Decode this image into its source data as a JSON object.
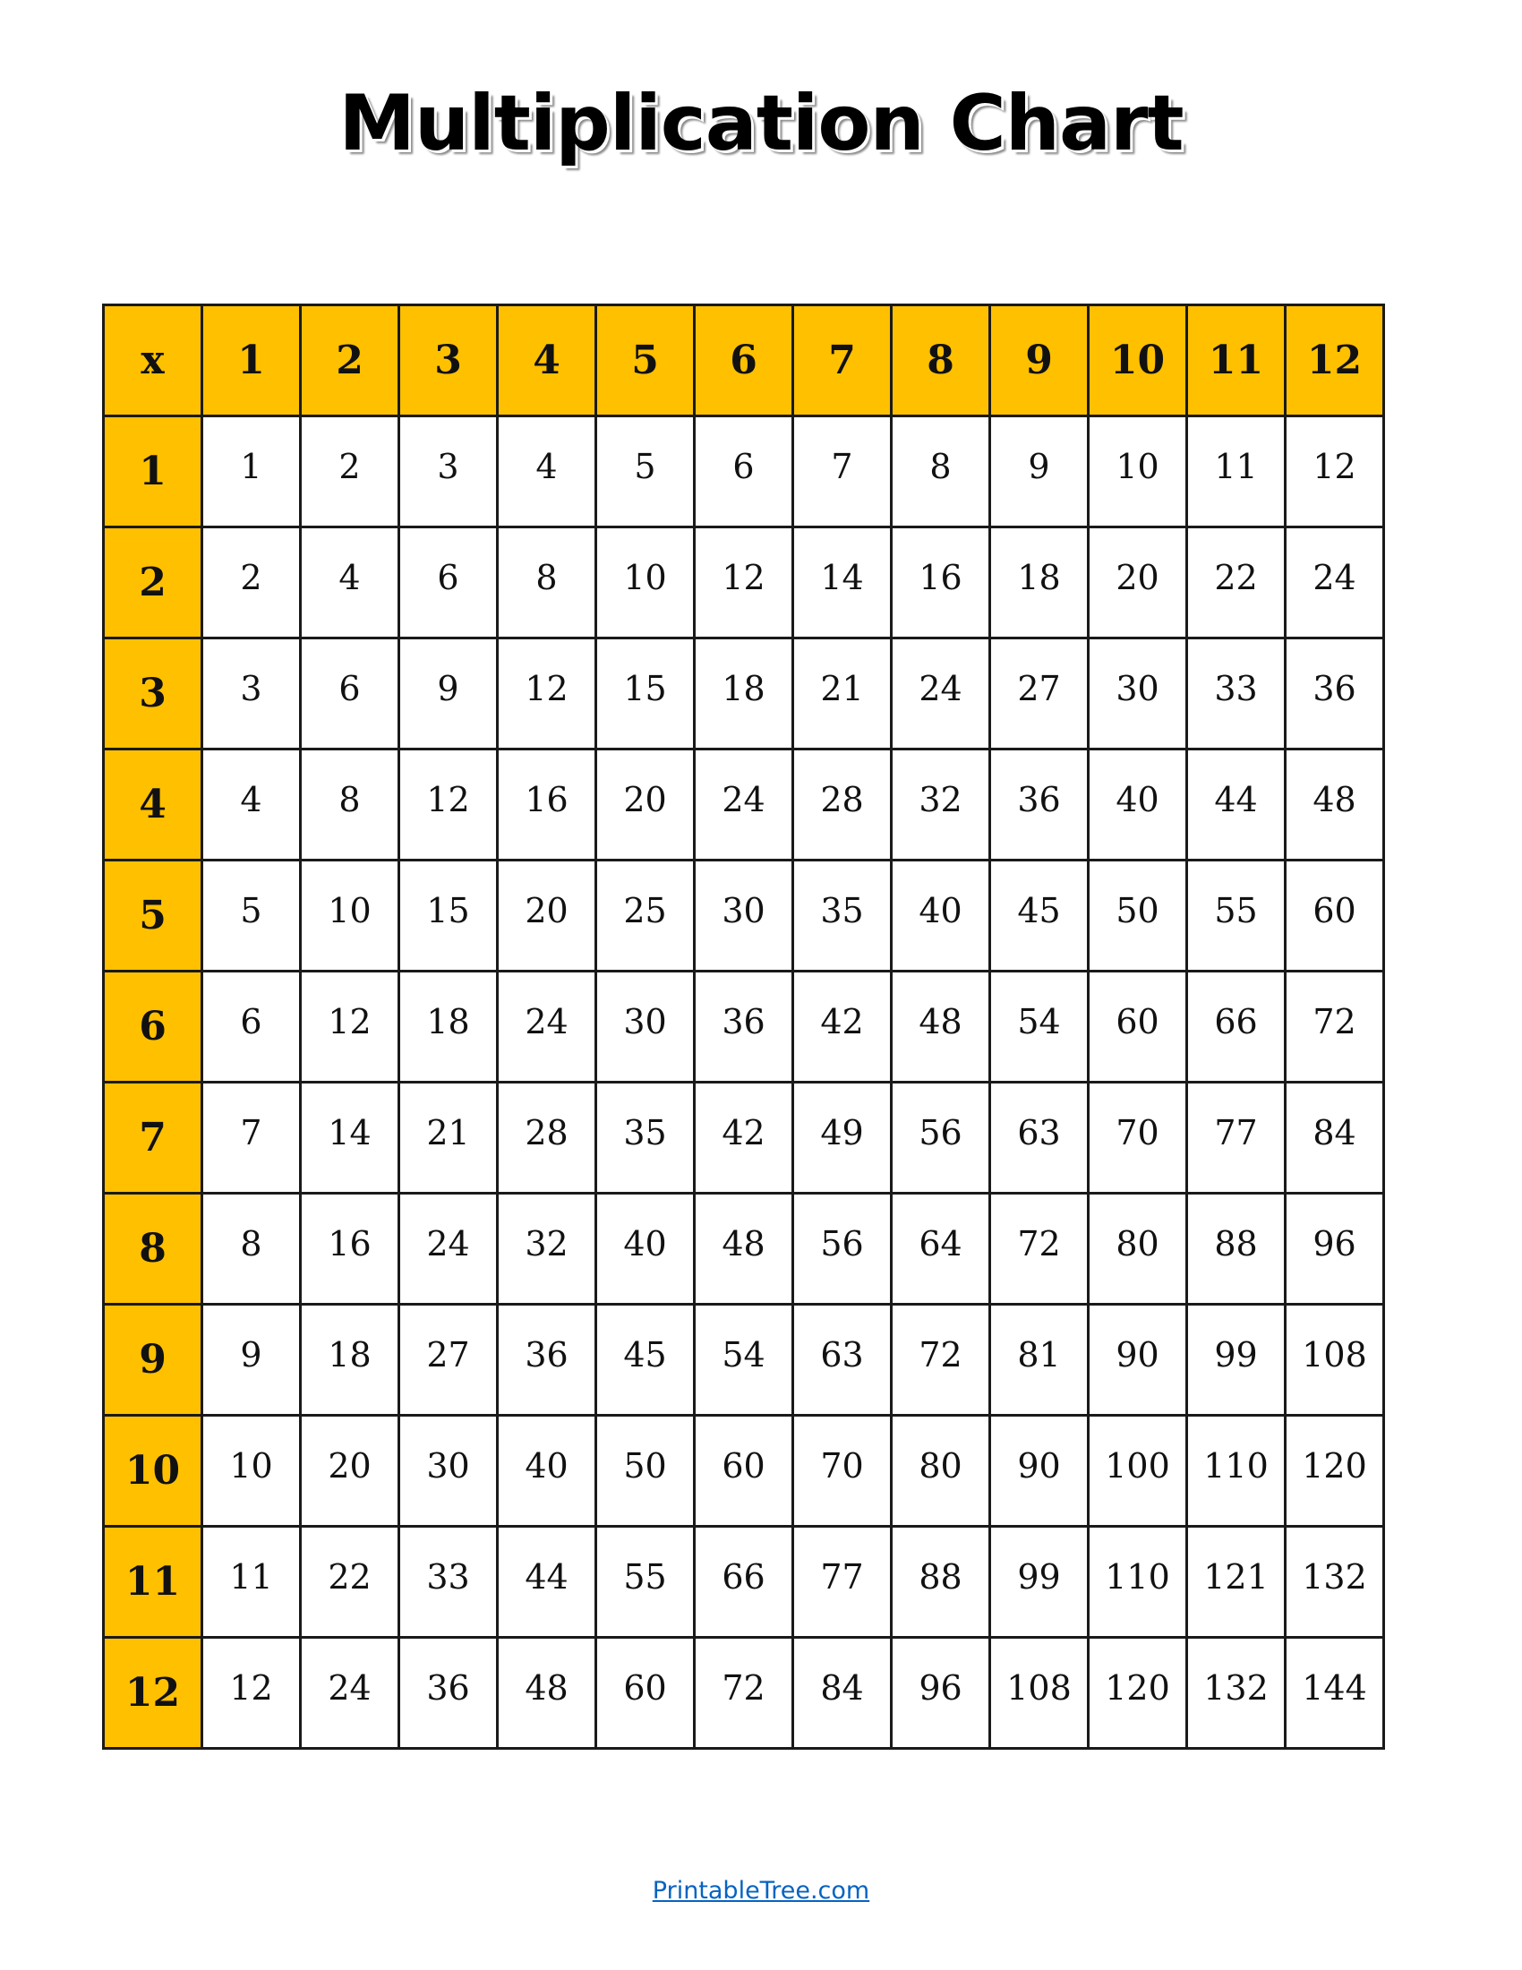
{
  "title": "Multiplication Chart",
  "colors": {
    "header_fill": "#FFC000",
    "border": "#1a1a1a",
    "link": "#0563C1"
  },
  "table": {
    "corner": "x",
    "columns": [
      "1",
      "2",
      "3",
      "4",
      "5",
      "6",
      "7",
      "8",
      "9",
      "10",
      "11",
      "12"
    ],
    "rows": [
      {
        "label": "1",
        "values": [
          "1",
          "2",
          "3",
          "4",
          "5",
          "6",
          "7",
          "8",
          "9",
          "10",
          "11",
          "12"
        ]
      },
      {
        "label": "2",
        "values": [
          "2",
          "4",
          "6",
          "8",
          "10",
          "12",
          "14",
          "16",
          "18",
          "20",
          "22",
          "24"
        ]
      },
      {
        "label": "3",
        "values": [
          "3",
          "6",
          "9",
          "12",
          "15",
          "18",
          "21",
          "24",
          "27",
          "30",
          "33",
          "36"
        ]
      },
      {
        "label": "4",
        "values": [
          "4",
          "8",
          "12",
          "16",
          "20",
          "24",
          "28",
          "32",
          "36",
          "40",
          "44",
          "48"
        ]
      },
      {
        "label": "5",
        "values": [
          "5",
          "10",
          "15",
          "20",
          "25",
          "30",
          "35",
          "40",
          "45",
          "50",
          "55",
          "60"
        ]
      },
      {
        "label": "6",
        "values": [
          "6",
          "12",
          "18",
          "24",
          "30",
          "36",
          "42",
          "48",
          "54",
          "60",
          "66",
          "72"
        ]
      },
      {
        "label": "7",
        "values": [
          "7",
          "14",
          "21",
          "28",
          "35",
          "42",
          "49",
          "56",
          "63",
          "70",
          "77",
          "84"
        ]
      },
      {
        "label": "8",
        "values": [
          "8",
          "16",
          "24",
          "32",
          "40",
          "48",
          "56",
          "64",
          "72",
          "80",
          "88",
          "96"
        ]
      },
      {
        "label": "9",
        "values": [
          "9",
          "18",
          "27",
          "36",
          "45",
          "54",
          "63",
          "72",
          "81",
          "90",
          "99",
          "108"
        ]
      },
      {
        "label": "10",
        "values": [
          "10",
          "20",
          "30",
          "40",
          "50",
          "60",
          "70",
          "80",
          "90",
          "100",
          "110",
          "120"
        ]
      },
      {
        "label": "11",
        "values": [
          "11",
          "22",
          "33",
          "44",
          "55",
          "66",
          "77",
          "88",
          "99",
          "110",
          "121",
          "132"
        ]
      },
      {
        "label": "12",
        "values": [
          "12",
          "24",
          "36",
          "48",
          "60",
          "72",
          "84",
          "96",
          "108",
          "120",
          "132",
          "144"
        ]
      }
    ]
  },
  "footer": {
    "link_text": "PrintableTree.com"
  }
}
